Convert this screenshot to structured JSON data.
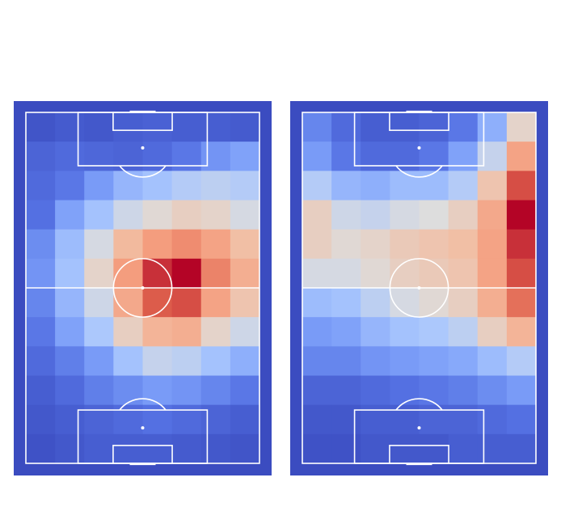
{
  "chart_data": [
    {
      "type": "heatmap",
      "title": "",
      "xlabel": "",
      "ylabel": "",
      "grid_rows": 12,
      "grid_cols": 8,
      "value_range": [
        0,
        1
      ],
      "colormap": "coolwarm",
      "values": [
        [
          0.03,
          0.05,
          0.04,
          0.06,
          0.07,
          0.06,
          0.06,
          0.05
        ],
        [
          0.08,
          0.1,
          0.09,
          0.08,
          0.1,
          0.14,
          0.22,
          0.26
        ],
        [
          0.1,
          0.14,
          0.24,
          0.32,
          0.36,
          0.4,
          0.42,
          0.4
        ],
        [
          0.12,
          0.26,
          0.36,
          0.46,
          0.52,
          0.56,
          0.54,
          0.48
        ],
        [
          0.2,
          0.34,
          0.48,
          0.64,
          0.74,
          0.78,
          0.72,
          0.62
        ],
        [
          0.22,
          0.36,
          0.54,
          0.74,
          0.94,
          1.0,
          0.8,
          0.68
        ],
        [
          0.18,
          0.32,
          0.46,
          0.7,
          0.88,
          0.9,
          0.72,
          0.6
        ],
        [
          0.14,
          0.26,
          0.38,
          0.56,
          0.66,
          0.68,
          0.54,
          0.46
        ],
        [
          0.1,
          0.16,
          0.24,
          0.36,
          0.44,
          0.42,
          0.36,
          0.3
        ],
        [
          0.06,
          0.1,
          0.16,
          0.2,
          0.24,
          0.22,
          0.18,
          0.14
        ],
        [
          0.04,
          0.06,
          0.08,
          0.1,
          0.12,
          0.1,
          0.08,
          0.06
        ],
        [
          0.02,
          0.04,
          0.06,
          0.06,
          0.06,
          0.05,
          0.04,
          0.03
        ]
      ]
    },
    {
      "type": "heatmap",
      "title": "",
      "xlabel": "",
      "ylabel": "",
      "grid_rows": 12,
      "grid_cols": 8,
      "value_range": [
        0,
        1
      ],
      "colormap": "coolwarm",
      "values": [
        [
          0.18,
          0.1,
          0.06,
          0.06,
          0.08,
          0.14,
          0.3,
          0.54
        ],
        [
          0.24,
          0.14,
          0.1,
          0.1,
          0.14,
          0.26,
          0.44,
          0.72
        ],
        [
          0.4,
          0.32,
          0.3,
          0.34,
          0.34,
          0.4,
          0.6,
          0.9
        ],
        [
          0.56,
          0.46,
          0.44,
          0.48,
          0.5,
          0.56,
          0.7,
          1.0
        ],
        [
          0.56,
          0.52,
          0.54,
          0.58,
          0.6,
          0.62,
          0.72,
          0.94
        ],
        [
          0.48,
          0.48,
          0.52,
          0.56,
          0.58,
          0.6,
          0.72,
          0.9
        ],
        [
          0.34,
          0.36,
          0.42,
          0.48,
          0.52,
          0.56,
          0.68,
          0.84
        ],
        [
          0.24,
          0.26,
          0.32,
          0.36,
          0.38,
          0.42,
          0.56,
          0.66
        ],
        [
          0.18,
          0.18,
          0.22,
          0.24,
          0.26,
          0.28,
          0.34,
          0.4
        ],
        [
          0.08,
          0.08,
          0.1,
          0.12,
          0.14,
          0.16,
          0.2,
          0.24
        ],
        [
          0.04,
          0.04,
          0.06,
          0.06,
          0.08,
          0.08,
          0.1,
          0.12
        ],
        [
          0.02,
          0.02,
          0.04,
          0.04,
          0.04,
          0.06,
          0.06,
          0.06
        ]
      ]
    }
  ],
  "colors": {
    "pitch_background": "#3b4cc0",
    "pitch_lines": "#ffffff",
    "page_background": "#ffffff"
  }
}
